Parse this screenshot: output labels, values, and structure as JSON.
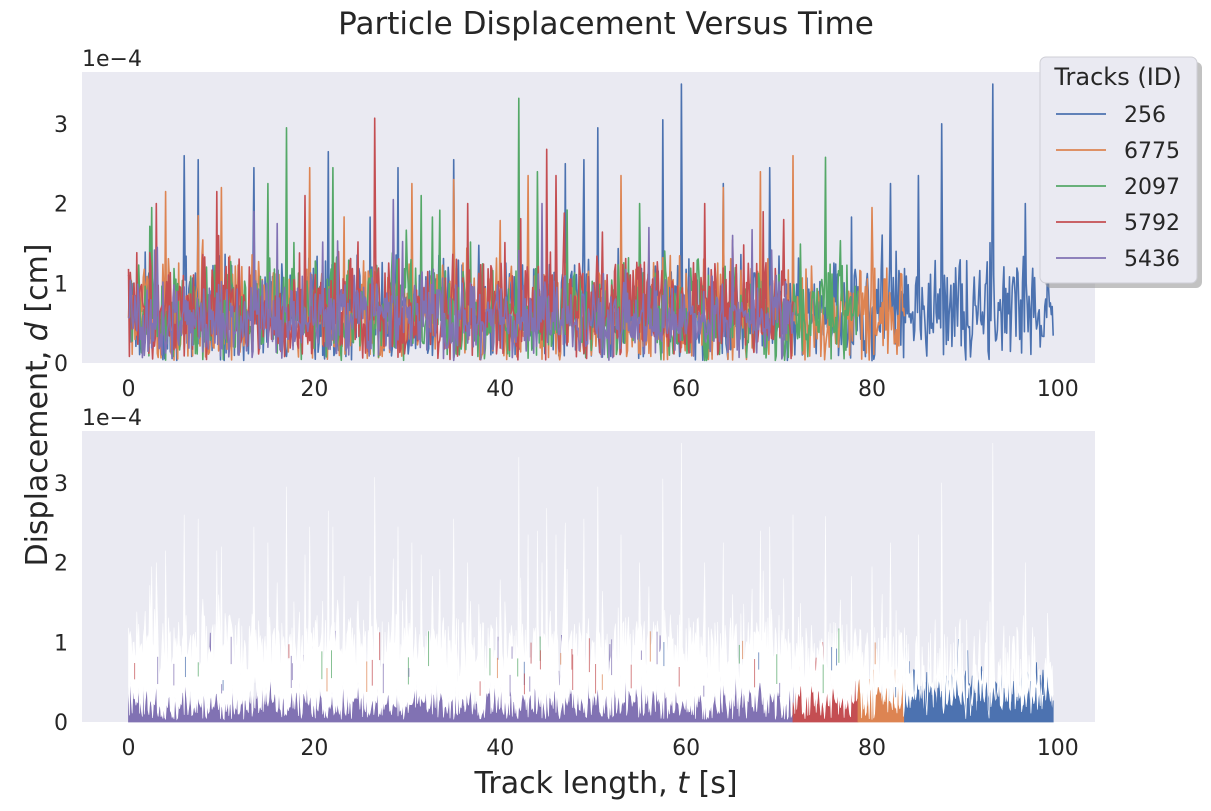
{
  "figure": {
    "title": "Particle Displacement Versus Time",
    "ylabel_prefix": "Displacement, ",
    "ylabel_var": "d",
    "ylabel_unit": " [cm]",
    "xlabel_prefix": "Track length, ",
    "xlabel_var": "t",
    "xlabel_unit": " [s]",
    "y_multiplier": "1e−4",
    "background_color": "#eaeaf2"
  },
  "legend": {
    "title": "Tracks (ID)",
    "placement": "top-right, outside upper axes",
    "entries": [
      "256",
      "6775",
      "2097",
      "5792",
      "5436"
    ]
  },
  "chart_data": [
    {
      "type": "line",
      "panel": "top",
      "xlim": [
        -5,
        104
      ],
      "ylim": [
        0,
        3.65
      ],
      "y_scale_factor": 0.0001,
      "xticks": [
        0,
        20,
        40,
        60,
        80,
        100
      ],
      "yticks": [
        0,
        1,
        2,
        3
      ],
      "grid": false,
      "series": [
        {
          "name": "256",
          "color": "#4c72b0",
          "t_end": 99.5,
          "mean": 0.62,
          "amp": 0.5,
          "peaks": [
            [
              6,
              2.6
            ],
            [
              7.5,
              2.55
            ],
            [
              13.5,
              2.45
            ],
            [
              21.5,
              2.65
            ],
            [
              29,
              2.45
            ],
            [
              35,
              2.55
            ],
            [
              47,
              2.5
            ],
            [
              49,
              2.55
            ],
            [
              50.5,
              2.95
            ],
            [
              57.5,
              3.05
            ],
            [
              59.5,
              3.5
            ],
            [
              64,
              2.25
            ],
            [
              69,
              2.45
            ],
            [
              82,
              2.25
            ],
            [
              85,
              2.35
            ],
            [
              87.5,
              3.0
            ],
            [
              93,
              3.5
            ],
            [
              96.5,
              2.0
            ]
          ]
        },
        {
          "name": "6775",
          "color": "#dd8452",
          "t_end": 83.5,
          "mean": 0.6,
          "amp": 0.5,
          "peaks": [
            [
              4,
              2.15
            ],
            [
              10,
              2.2
            ],
            [
              19.5,
              2.45
            ],
            [
              30.5,
              2.25
            ],
            [
              35,
              2.3
            ],
            [
              43,
              2.35
            ],
            [
              53,
              2.35
            ],
            [
              64,
              2.2
            ],
            [
              68,
              2.4
            ],
            [
              71.5,
              2.6
            ],
            [
              80,
              1.95
            ]
          ]
        },
        {
          "name": "2097",
          "color": "#55a868",
          "t_end": 78.5,
          "mean": 0.6,
          "amp": 0.5,
          "peaks": [
            [
              2.5,
              1.95
            ],
            [
              15,
              2.25
            ],
            [
              17,
              2.95
            ],
            [
              22,
              2.45
            ],
            [
              31.5,
              2.1
            ],
            [
              42,
              3.32
            ],
            [
              44,
              2.4
            ],
            [
              55,
              2.0
            ],
            [
              75,
              2.58
            ]
          ]
        },
        {
          "name": "5792",
          "color": "#c44e52",
          "t_end": 71.5,
          "mean": 0.65,
          "amp": 0.5,
          "peaks": [
            [
              3,
              2.0
            ],
            [
              9.5,
              2.15
            ],
            [
              19,
              2.1
            ],
            [
              26.5,
              3.07
            ],
            [
              36.5,
              2.0
            ],
            [
              45,
              2.68
            ],
            [
              46,
              2.35
            ],
            [
              62,
              2.0
            ],
            [
              70.5,
              1.8
            ]
          ]
        },
        {
          "name": "5436",
          "color": "#8172b3",
          "t_end": 71.5,
          "mean": 0.55,
          "amp": 0.4,
          "peaks": [
            [
              13.5,
              1.9
            ],
            [
              16,
              1.75
            ],
            [
              28.5,
              2.05
            ],
            [
              44.5,
              2.0
            ],
            [
              56,
              1.7
            ],
            [
              65,
              1.6
            ]
          ]
        }
      ]
    },
    {
      "type": "area",
      "panel": "bottom",
      "description_note": "stacked displacement bands for each track drawn in white over colored fills",
      "xlim": [
        -5,
        104
      ],
      "ylim": [
        0,
        3.65
      ],
      "y_scale_factor": 0.0001,
      "xticks": [
        0,
        20,
        40,
        60,
        80,
        100
      ],
      "yticks": [
        0,
        1,
        2,
        3
      ],
      "grid": false,
      "segments": [
        {
          "name": "5436",
          "color": "#8172b3",
          "t_start": 0,
          "t_end": 71.5
        },
        {
          "name": "5792",
          "color": "#c44e52",
          "t_start": 71.5,
          "t_end": 78.5
        },
        {
          "name": "6775",
          "color": "#dd8452",
          "t_start": 78.5,
          "t_end": 83.5
        },
        {
          "name": "256",
          "color": "#4c72b0",
          "t_start": 83.5,
          "t_end": 99.5
        }
      ]
    }
  ]
}
